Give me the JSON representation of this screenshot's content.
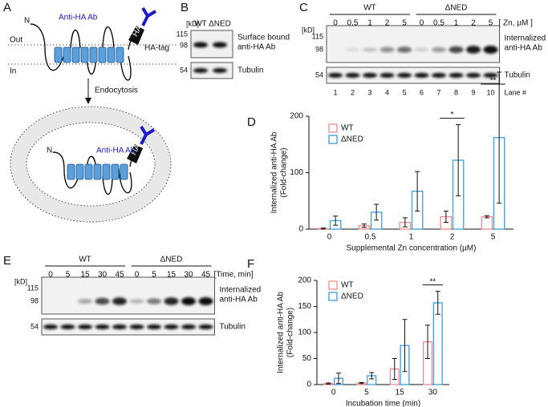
{
  "panel_a": {
    "letter": "A",
    "n_top": "N",
    "antibody_top": "Anti-HA Ab",
    "tag": "HA",
    "tag_label": "HA-tag",
    "out": "Out",
    "in": "In",
    "arrow_label": "Endocytosis",
    "n_bottom": "N",
    "antibody_bottom": "Anti-HA Ab",
    "tag_bottom": "HA"
  },
  "panel_b": {
    "letter": "B",
    "kd": "[kD]",
    "lanes": [
      "WT",
      "ΔNED"
    ],
    "markers": [
      "115",
      "98",
      "54"
    ],
    "blot_label": [
      "Surface bound",
      "anti-HA Ab"
    ],
    "loading_label": "Tubulin"
  },
  "panel_c": {
    "letter": "C",
    "groups": [
      "WT",
      "ΔNED"
    ],
    "lanes": [
      "0",
      "0.5",
      "1",
      "2",
      "5",
      "0",
      "0.5",
      "1",
      "2",
      "5"
    ],
    "unit": "[ Zn, µM ]",
    "kd": "[kD]",
    "markers": [
      "115",
      "98",
      "54"
    ],
    "blot_label": [
      "Internalized",
      "anti-HA Ab"
    ],
    "loading_label": "Tubulin",
    "lane_numbers": [
      "1",
      "2",
      "3",
      "4",
      "5",
      "6",
      "7",
      "8",
      "9",
      "10"
    ],
    "lane_numbers_label": "Lane #"
  },
  "panel_e": {
    "letter": "E",
    "groups": [
      "WT",
      "ΔNED"
    ],
    "lanes": [
      "0",
      "5",
      "15",
      "30",
      "45",
      "0",
      "5",
      "15",
      "30",
      "45"
    ],
    "unit": "[Time, min]",
    "kd": "[kD]",
    "markers": [
      "115",
      "98",
      "54"
    ],
    "blot_label": [
      "Internalized",
      "anti-HA Ab"
    ],
    "loading_label": "Tubulin"
  },
  "chart_data": [
    {
      "type": "bar",
      "panel_label": "D",
      "ylabel": [
        "Internalized anti-HA Ab",
        "(Fold-change)"
      ],
      "xlabel": "Supplemental Zn concentration (µM)",
      "categories": [
        "0",
        "0.5",
        "1",
        "2",
        "5"
      ],
      "series": [
        {
          "name": "WT",
          "color": "#f08a8a",
          "values": [
            1,
            6,
            12,
            22,
            22
          ],
          "errors": [
            1,
            3,
            8,
            10,
            2
          ]
        },
        {
          "name": "ΔNED",
          "color": "#3a9fdb",
          "values": [
            15,
            30,
            67,
            122,
            162
          ],
          "errors": [
            8,
            14,
            35,
            63,
            116
          ]
        }
      ],
      "significance": [
        null,
        null,
        null,
        "*",
        "**"
      ],
      "ylim": [
        0,
        200
      ],
      "yticks": [
        0,
        100,
        200
      ]
    },
    {
      "type": "bar",
      "panel_label": "F",
      "ylabel": [
        "Internalized anti-HA Ab",
        "(Fold-change)"
      ],
      "xlabel": "Incubation time (min)",
      "categories": [
        "0",
        "5",
        "15",
        "30"
      ],
      "series": [
        {
          "name": "WT",
          "color": "#f08a8a",
          "values": [
            2,
            3,
            30,
            82
          ],
          "errors": [
            1,
            1,
            20,
            32
          ]
        },
        {
          "name": "ΔNED",
          "color": "#3a9fdb",
          "values": [
            12,
            17,
            75,
            157
          ],
          "errors": [
            10,
            6,
            50,
            22
          ]
        }
      ],
      "significance": [
        null,
        null,
        null,
        "**"
      ],
      "ylim": [
        0,
        200
      ],
      "yticks": [
        0,
        50,
        100,
        150,
        200
      ]
    }
  ]
}
